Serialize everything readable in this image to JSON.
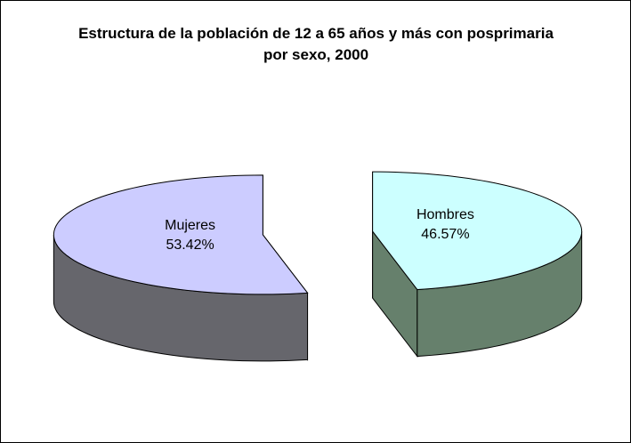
{
  "chart_data": {
    "type": "pie3d",
    "title": "Estructura de la población de 12 a 65 años y más con posprimaria por sexo, 2000",
    "categories": [
      "Hombres",
      "Mujeres"
    ],
    "values": [
      46.57,
      53.42
    ],
    "value_labels": [
      "46.57%",
      "53.42%"
    ],
    "colors": [
      "#ccffff",
      "#ccccff"
    ],
    "exploded": true
  }
}
